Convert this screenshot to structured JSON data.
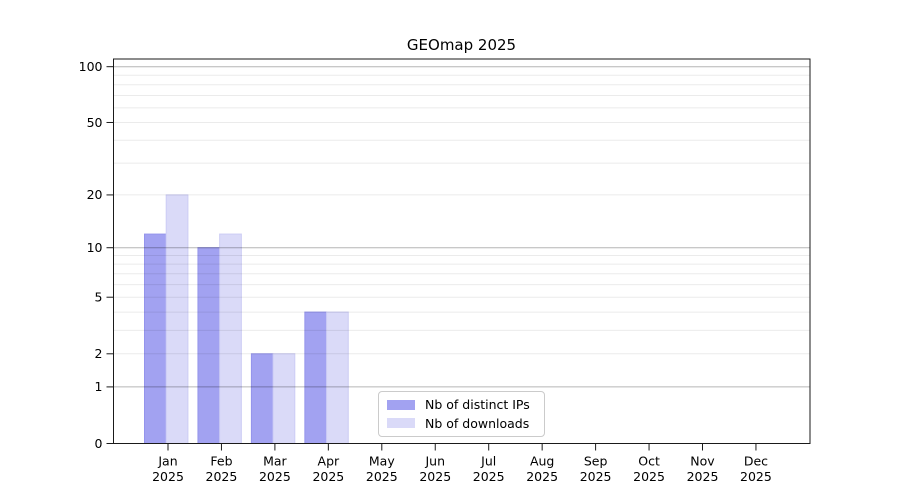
{
  "title": "GEOmap 2025",
  "chart_data": {
    "type": "bar",
    "title": "GEOmap 2025",
    "categories": [
      "Jan",
      "Feb",
      "Mar",
      "Apr",
      "May",
      "Jun",
      "Jul",
      "Aug",
      "Sep",
      "Oct",
      "Nov",
      "Dec"
    ],
    "category_year": "2025",
    "series": [
      {
        "name": "Nb of distinct IPs",
        "color": "#a2a2f1",
        "edge": "#9494ec",
        "values": [
          12,
          10,
          2,
          4,
          0,
          0,
          0,
          0,
          0,
          0,
          0,
          0
        ]
      },
      {
        "name": "Nb of downloads",
        "color": "#dadaf8",
        "edge": "#ccccf4",
        "values": [
          20,
          12,
          2,
          4,
          0,
          0,
          0,
          0,
          0,
          0,
          0,
          0
        ]
      }
    ],
    "yscale": "log1p",
    "ylim": [
      0,
      110
    ],
    "ytick_labels": [
      "0",
      "1",
      "2",
      "5",
      "10",
      "20",
      "50",
      "100"
    ],
    "ytick_values": [
      0,
      1,
      2,
      5,
      10,
      20,
      50,
      100
    ],
    "major_gridlines": [
      1,
      10,
      100
    ],
    "minor_gridlines": [
      2,
      3,
      4,
      5,
      6,
      7,
      8,
      9,
      20,
      30,
      40,
      50,
      60,
      70,
      80,
      90
    ],
    "grid": true,
    "legend_position": "lower-center"
  },
  "colors": {
    "major_grid": "rgba(0,0,0,0.29)",
    "minor_grid": "rgba(0,0,0,0.08)",
    "spine": "#1a1a1a",
    "tick_text": "#000000"
  }
}
